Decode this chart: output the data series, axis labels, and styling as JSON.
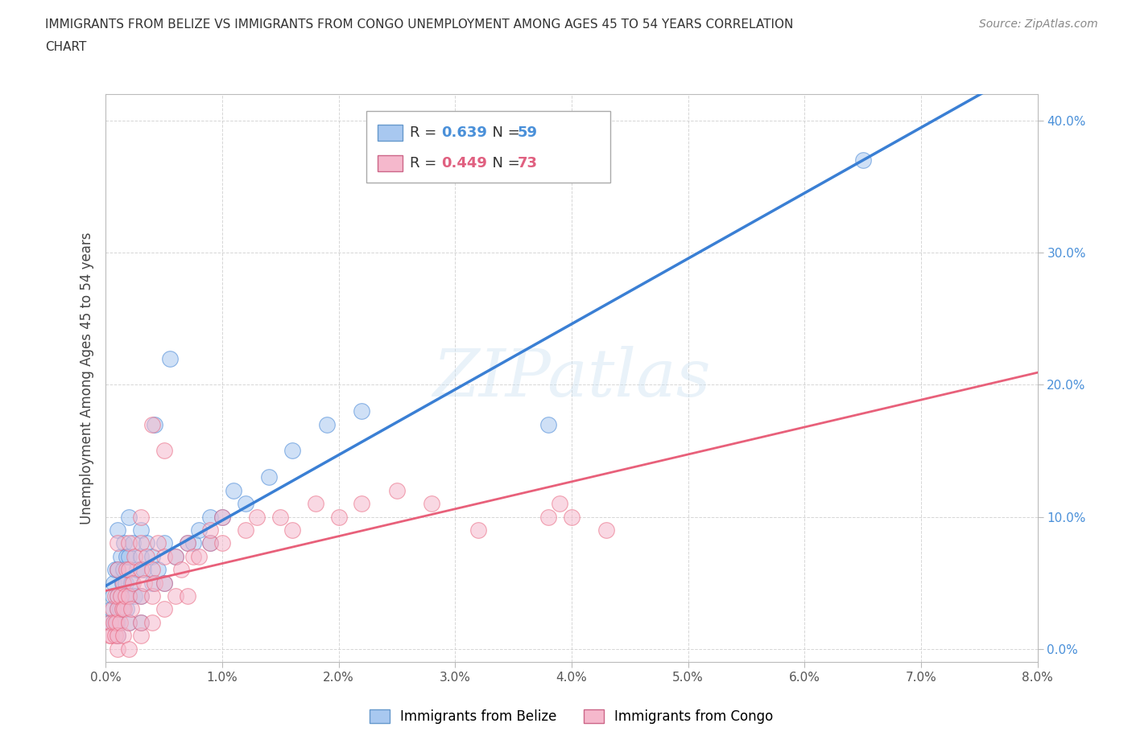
{
  "title_line1": "IMMIGRANTS FROM BELIZE VS IMMIGRANTS FROM CONGO UNEMPLOYMENT AMONG AGES 45 TO 54 YEARS CORRELATION",
  "title_line2": "CHART",
  "source": "Source: ZipAtlas.com",
  "ylabel": "Unemployment Among Ages 45 to 54 years",
  "xlim": [
    0.0,
    0.08
  ],
  "ylim": [
    -0.01,
    0.42
  ],
  "xticks": [
    0.0,
    0.01,
    0.02,
    0.03,
    0.04,
    0.05,
    0.06,
    0.07,
    0.08
  ],
  "yticks": [
    0.0,
    0.1,
    0.2,
    0.3,
    0.4
  ],
  "belize_R": 0.639,
  "belize_N": 59,
  "congo_R": 0.449,
  "congo_N": 73,
  "belize_dot_color": "#a8c8f0",
  "congo_dot_color": "#f5b8cc",
  "belize_line_color": "#3a7fd4",
  "congo_line_color": "#e8607a",
  "legend_label_belize": "Immigrants from Belize",
  "legend_label_congo": "Immigrants from Congo",
  "watermark": "ZIPatlas",
  "belize_x": [
    0.0004,
    0.0005,
    0.0006,
    0.0007,
    0.0008,
    0.0008,
    0.001,
    0.001,
    0.001,
    0.001,
    0.001,
    0.001,
    0.0012,
    0.0013,
    0.0013,
    0.0014,
    0.0015,
    0.0015,
    0.0016,
    0.0016,
    0.0017,
    0.0018,
    0.0018,
    0.002,
    0.002,
    0.002,
    0.002,
    0.0022,
    0.0023,
    0.0025,
    0.0027,
    0.003,
    0.003,
    0.003,
    0.003,
    0.0032,
    0.0035,
    0.004,
    0.004,
    0.0042,
    0.0045,
    0.005,
    0.005,
    0.0055,
    0.006,
    0.007,
    0.0075,
    0.008,
    0.009,
    0.009,
    0.01,
    0.011,
    0.012,
    0.014,
    0.016,
    0.019,
    0.022,
    0.038,
    0.065
  ],
  "belize_y": [
    0.02,
    0.03,
    0.04,
    0.05,
    0.02,
    0.06,
    0.01,
    0.02,
    0.03,
    0.04,
    0.06,
    0.09,
    0.03,
    0.04,
    0.07,
    0.05,
    0.03,
    0.06,
    0.04,
    0.08,
    0.05,
    0.03,
    0.07,
    0.02,
    0.04,
    0.07,
    0.1,
    0.05,
    0.08,
    0.04,
    0.06,
    0.02,
    0.04,
    0.07,
    0.09,
    0.06,
    0.08,
    0.05,
    0.07,
    0.17,
    0.06,
    0.05,
    0.08,
    0.22,
    0.07,
    0.08,
    0.08,
    0.09,
    0.08,
    0.1,
    0.1,
    0.12,
    0.11,
    0.13,
    0.15,
    0.17,
    0.18,
    0.17,
    0.37
  ],
  "congo_x": [
    0.0003,
    0.0004,
    0.0005,
    0.0006,
    0.0007,
    0.0008,
    0.0008,
    0.0009,
    0.001,
    0.001,
    0.001,
    0.001,
    0.001,
    0.001,
    0.0012,
    0.0013,
    0.0014,
    0.0015,
    0.0015,
    0.0016,
    0.0017,
    0.0018,
    0.002,
    0.002,
    0.002,
    0.002,
    0.002,
    0.0022,
    0.0023,
    0.0025,
    0.003,
    0.003,
    0.003,
    0.003,
    0.003,
    0.003,
    0.0033,
    0.0035,
    0.004,
    0.004,
    0.004,
    0.004,
    0.0042,
    0.0045,
    0.005,
    0.005,
    0.005,
    0.005,
    0.006,
    0.006,
    0.0065,
    0.007,
    0.007,
    0.0075,
    0.008,
    0.009,
    0.009,
    0.01,
    0.01,
    0.012,
    0.013,
    0.015,
    0.016,
    0.018,
    0.02,
    0.022,
    0.025,
    0.028,
    0.032,
    0.038,
    0.039,
    0.04,
    0.043
  ],
  "congo_y": [
    0.01,
    0.02,
    0.01,
    0.03,
    0.02,
    0.01,
    0.04,
    0.02,
    0.0,
    0.01,
    0.03,
    0.04,
    0.06,
    0.08,
    0.02,
    0.04,
    0.03,
    0.01,
    0.05,
    0.03,
    0.04,
    0.06,
    0.0,
    0.02,
    0.04,
    0.06,
    0.08,
    0.03,
    0.05,
    0.07,
    0.01,
    0.02,
    0.04,
    0.06,
    0.08,
    0.1,
    0.05,
    0.07,
    0.02,
    0.04,
    0.06,
    0.17,
    0.05,
    0.08,
    0.03,
    0.05,
    0.07,
    0.15,
    0.04,
    0.07,
    0.06,
    0.04,
    0.08,
    0.07,
    0.07,
    0.08,
    0.09,
    0.08,
    0.1,
    0.09,
    0.1,
    0.1,
    0.09,
    0.11,
    0.1,
    0.11,
    0.12,
    0.11,
    0.09,
    0.1,
    0.11,
    0.1,
    0.09
  ]
}
